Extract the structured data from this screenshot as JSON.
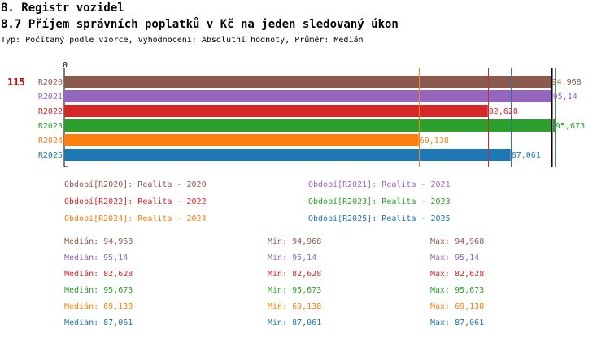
{
  "header": {
    "section": "8. Registr vozidel",
    "title": "8.7 Příjem správních poplatků v Kč na jeden sledovaný úkon",
    "subtitle": "Typ: Počítaný podle vzorce, Vyhodnocení: Absolutní hodnoty, Průměr: Medián"
  },
  "indicator_value": "115",
  "chart_data": {
    "type": "bar",
    "orientation": "horizontal",
    "axis_zero_label": "0",
    "categories": [
      "R2020",
      "R2021",
      "R2022",
      "R2023",
      "R2024",
      "R2025"
    ],
    "values": [
      94.968,
      95.14,
      82.628,
      95.673,
      69.138,
      87.061
    ],
    "value_labels": [
      "94,968",
      "95,14",
      "82,628",
      "95,673",
      "69,138",
      "87,061"
    ],
    "colors": [
      "#8b5a4e",
      "#9467bd",
      "#d62728",
      "#2ca02c",
      "#ff7f0e",
      "#1f77b4"
    ],
    "label_colors": [
      "#8b5a4e",
      "#9467bd",
      "#d62728",
      "#2ca02c",
      "#ff7f0e",
      "#1f77b4"
    ],
    "xlim": [
      0,
      95.673
    ],
    "reference_lines": [
      {
        "value": 69.138,
        "color": "#ff7f0e"
      },
      {
        "value": 82.628,
        "color": "#d62728"
      },
      {
        "value": 87.061,
        "color": "#1f77b4"
      },
      {
        "value": 94.968,
        "color": "#8b5a4e"
      },
      {
        "value": 95.14,
        "color": "#9467bd"
      },
      {
        "value": 95.673,
        "color": "#2ca02c"
      }
    ]
  },
  "legend": [
    {
      "text": "Období[R2020]: Realita - 2020",
      "color": "#8b5a4e"
    },
    {
      "text": "Období[R2021]: Realita - 2021",
      "color": "#9467bd"
    },
    {
      "text": "Období[R2022]: Realita - 2022",
      "color": "#d62728"
    },
    {
      "text": "Období[R2023]: Realita - 2023",
      "color": "#2ca02c"
    },
    {
      "text": "Období[R2024]: Realita - 2024",
      "color": "#ff7f0e"
    },
    {
      "text": "Období[R2025]: Realita - 2025",
      "color": "#1f77b4"
    }
  ],
  "stats": [
    {
      "median": "Medián: 94,968",
      "min": "Min: 94,968",
      "max": "Max: 94,968",
      "color": "#8b5a4e"
    },
    {
      "median": "Medián: 95,14",
      "min": "Min: 95,14",
      "max": "Max: 95,14",
      "color": "#9467bd"
    },
    {
      "median": "Medián: 82,628",
      "min": "Min: 82,628",
      "max": "Max: 82,628",
      "color": "#d62728"
    },
    {
      "median": "Medián: 95,673",
      "min": "Min: 95,673",
      "max": "Max: 95,673",
      "color": "#2ca02c"
    },
    {
      "median": "Medián: 69,138",
      "min": "Min: 69,138",
      "max": "Max: 69,138",
      "color": "#ff7f0e"
    },
    {
      "median": "Medián: 87,061",
      "min": "Min: 87,061",
      "max": "Max: 87,061",
      "color": "#1f77b4"
    }
  ]
}
